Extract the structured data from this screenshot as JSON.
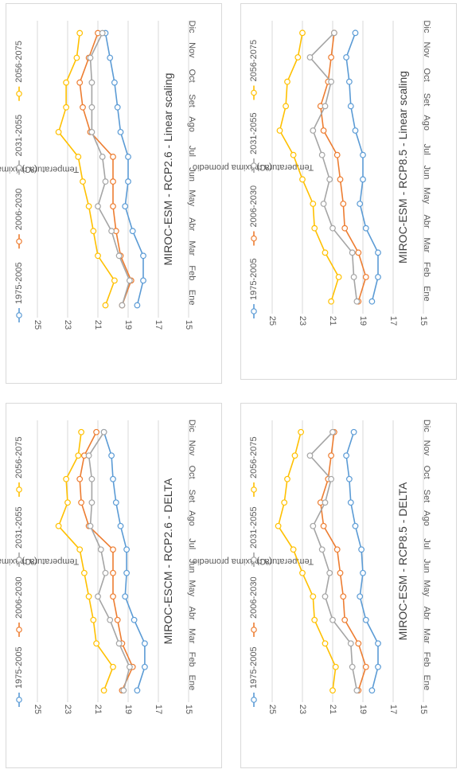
{
  "chart_data": [
    {
      "type": "line",
      "title": "MIROC-ESCM - RCP2.6 - DELTA",
      "ylabel": "Temperatura máxima promedio",
      "yunit": "(ºC)",
      "ylim": [
        15,
        25
      ],
      "yticks": [
        15,
        17,
        19,
        21,
        23,
        25
      ],
      "categories": [
        "Ene",
        "Feb",
        "Mar",
        "Abr",
        "May",
        "Jun",
        "Jul",
        "Ago",
        "Set",
        "Oct",
        "Nov",
        "Dic"
      ],
      "legend_position": "top",
      "grid": true,
      "series": [
        {
          "name": "1975-2005",
          "color": "#5b9bd5",
          "values": [
            18.4,
            17.9,
            17.9,
            18.6,
            19.2,
            19.1,
            19.1,
            19.5,
            19.8,
            20.0,
            20.1,
            20.6
          ]
        },
        {
          "name": "2006-2030",
          "color": "#ed7d31",
          "values": [
            19.4,
            18.7,
            19.4,
            19.7,
            20.0,
            20.0,
            20.0,
            21.6,
            22.1,
            22.2,
            21.9,
            21.1
          ]
        },
        {
          "name": "2031-2055",
          "color": "#a5a5a5",
          "values": [
            19.3,
            18.9,
            19.6,
            20.2,
            21.0,
            20.5,
            20.8,
            21.5,
            21.4,
            21.4,
            21.6,
            20.6
          ]
        },
        {
          "name": "2056-2075",
          "color": "#ffc000",
          "values": [
            20.6,
            20.0,
            21.1,
            21.3,
            21.6,
            21.9,
            22.2,
            23.6,
            23.0,
            23.1,
            22.3,
            22.1
          ]
        }
      ]
    },
    {
      "type": "line",
      "title": "MIROC-ESM - RCP2.6 - Linear scaling",
      "ylabel": "Temperatura máxima promedio",
      "yunit": "(ºC)",
      "ylim": [
        15,
        25
      ],
      "yticks": [
        15,
        17,
        19,
        21,
        23,
        25
      ],
      "categories": [
        "Ene",
        "Feb",
        "Mar",
        "Abr",
        "May",
        "Jun",
        "Jul",
        "Ago",
        "Set",
        "Oct",
        "Nov",
        "Dic"
      ],
      "legend_position": "top",
      "grid": true,
      "series": [
        {
          "name": "1975-2005",
          "color": "#5b9bd5",
          "values": [
            18.4,
            18.0,
            18.0,
            18.7,
            19.2,
            19.0,
            19.0,
            19.5,
            19.7,
            19.9,
            20.2,
            20.5
          ]
        },
        {
          "name": "2006-2030",
          "color": "#ed7d31",
          "values": [
            19.4,
            18.8,
            19.5,
            19.8,
            20.0,
            20.0,
            20.0,
            21.5,
            22.0,
            22.2,
            21.6,
            21.0
          ]
        },
        {
          "name": "2031-2055",
          "color": "#a5a5a5",
          "values": [
            19.4,
            18.9,
            19.6,
            20.1,
            21.0,
            20.5,
            20.7,
            21.4,
            21.4,
            21.4,
            21.5,
            20.7
          ]
        },
        {
          "name": "2056-2075",
          "color": "#ffc000",
          "values": [
            20.5,
            19.9,
            21.0,
            21.3,
            21.6,
            22.0,
            22.3,
            23.6,
            23.1,
            23.1,
            22.4,
            22.2
          ]
        }
      ]
    },
    {
      "type": "line",
      "title": "MIROC-ESM - RCP8.5 - DELTA",
      "ylabel": "Temperatura máxima promedio",
      "yunit": "(ºC)",
      "ylim": [
        15,
        25
      ],
      "yticks": [
        15,
        17,
        19,
        21,
        23,
        25
      ],
      "categories": [
        "Ene",
        "Feb",
        "Mar",
        "Abr",
        "May",
        "Jun",
        "Jul",
        "Ago",
        "Set",
        "Oct",
        "Nov",
        "Dic"
      ],
      "legend_position": "top",
      "grid": true,
      "series": [
        {
          "name": "1975-2005",
          "color": "#5b9bd5",
          "values": [
            18.4,
            18.0,
            18.0,
            18.8,
            19.2,
            19.0,
            19.1,
            19.5,
            19.8,
            19.9,
            20.1,
            19.6
          ]
        },
        {
          "name": "2006-2030",
          "color": "#ed7d31",
          "values": [
            19.3,
            18.8,
            19.3,
            20.2,
            20.3,
            20.5,
            20.7,
            21.6,
            21.8,
            21.3,
            21.1,
            20.9
          ]
        },
        {
          "name": "2031-2055",
          "color": "#a5a5a5",
          "values": [
            19.4,
            19.7,
            19.8,
            21.0,
            21.5,
            21.2,
            21.7,
            22.3,
            21.5,
            21.1,
            22.5,
            21.0
          ]
        },
        {
          "name": "2056-2075",
          "color": "#ffc000",
          "values": [
            21.0,
            20.8,
            21.5,
            22.2,
            22.3,
            23.0,
            23.6,
            24.6,
            24.2,
            24.0,
            23.5,
            23.1
          ]
        }
      ]
    },
    {
      "type": "line",
      "title": "MIROC-ESM - RCP8.5 - Linear scaling",
      "ylabel": "Temperatura máxima promedio",
      "yunit": "(ºC)",
      "ylim": [
        15,
        25
      ],
      "yticks": [
        15,
        17,
        19,
        21,
        23,
        25
      ],
      "categories": [
        "Ene",
        "Feb",
        "Mar",
        "Abr",
        "May",
        "Jun",
        "Jul",
        "Ago",
        "Set",
        "Oct",
        "Nov",
        "Dic"
      ],
      "legend_position": "top",
      "grid": true,
      "series": [
        {
          "name": "1975-2005",
          "color": "#5b9bd5",
          "values": [
            18.4,
            18.0,
            18.0,
            18.8,
            19.2,
            19.0,
            19.0,
            19.5,
            19.8,
            19.9,
            20.1,
            19.5
          ]
        },
        {
          "name": "2006-2030",
          "color": "#ed7d31",
          "values": [
            19.3,
            18.8,
            19.3,
            20.2,
            20.3,
            20.5,
            20.7,
            21.6,
            21.8,
            21.3,
            21.1,
            20.9
          ]
        },
        {
          "name": "2031-2055",
          "color": "#a5a5a5",
          "values": [
            19.4,
            19.6,
            19.7,
            21.0,
            21.6,
            21.2,
            21.7,
            22.3,
            21.5,
            21.1,
            22.5,
            20.9
          ]
        },
        {
          "name": "2056-2075",
          "color": "#ffc000",
          "values": [
            21.1,
            20.6,
            21.5,
            22.2,
            22.3,
            23.0,
            23.6,
            24.5,
            24.1,
            24.0,
            23.3,
            23.0
          ]
        }
      ]
    }
  ]
}
